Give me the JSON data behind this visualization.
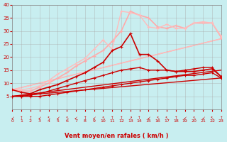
{
  "xlabel": "Vent moyen/en rafales ( km/h )",
  "background_color": "#c8eef0",
  "grid_color": "#aaaaaa",
  "xlim": [
    0,
    23
  ],
  "ylim": [
    0,
    40
  ],
  "yticks": [
    5,
    10,
    15,
    20,
    25,
    30,
    35,
    40
  ],
  "xticks": [
    0,
    1,
    2,
    3,
    4,
    5,
    6,
    7,
    8,
    9,
    10,
    11,
    12,
    13,
    14,
    15,
    16,
    17,
    18,
    19,
    20,
    21,
    22,
    23
  ],
  "series": [
    {
      "note": "straight dark red line bottom - linear from ~5 to ~12",
      "x": [
        0,
        23
      ],
      "y": [
        5.0,
        12.0
      ],
      "color": "#cc0000",
      "linewidth": 1.0,
      "marker": null,
      "linestyle": "-",
      "zorder": 2
    },
    {
      "note": "straight dark red line - linear from ~5 to ~15",
      "x": [
        0,
        23
      ],
      "y": [
        5.0,
        15.0
      ],
      "color": "#cc0000",
      "linewidth": 1.0,
      "marker": null,
      "linestyle": "-",
      "zorder": 2
    },
    {
      "note": "straight pink line - linear from ~7.5 to ~27",
      "x": [
        0,
        23
      ],
      "y": [
        7.5,
        27.0
      ],
      "color": "#ffaaaa",
      "linewidth": 1.0,
      "marker": null,
      "linestyle": "-",
      "zorder": 1
    },
    {
      "note": "straight pink line upper - linear from ~7.5 to ~27",
      "x": [
        0,
        23
      ],
      "y": [
        7.5,
        27.0
      ],
      "color": "#ffbbbb",
      "linewidth": 1.0,
      "marker": null,
      "linestyle": "-",
      "zorder": 1
    },
    {
      "note": "dark red jagged with markers - bottom flat ~5, slight rise to 13",
      "x": [
        0,
        1,
        2,
        3,
        4,
        5,
        6,
        7,
        8,
        9,
        10,
        11,
        12,
        13,
        14,
        15,
        16,
        17,
        18,
        19,
        20,
        21,
        22,
        23
      ],
      "y": [
        5.0,
        5.0,
        5.0,
        5.0,
        5.5,
        6.0,
        6.5,
        7.0,
        7.5,
        8.0,
        8.5,
        9.0,
        9.5,
        10.0,
        10.5,
        11.0,
        11.5,
        12.0,
        12.5,
        13.0,
        13.0,
        13.5,
        14.0,
        12.0
      ],
      "color": "#cc0000",
      "linewidth": 1.0,
      "marker": "+",
      "markersize": 3,
      "linestyle": "-",
      "zorder": 4
    },
    {
      "note": "dark red jagged - rises to ~15 then flat",
      "x": [
        0,
        1,
        2,
        3,
        4,
        5,
        6,
        7,
        8,
        9,
        10,
        11,
        12,
        13,
        14,
        15,
        16,
        17,
        18,
        19,
        20,
        21,
        22,
        23
      ],
      "y": [
        5.0,
        5.0,
        5.5,
        6.0,
        7.0,
        8.0,
        9.0,
        10.0,
        11.0,
        12.0,
        13.0,
        14.0,
        15.0,
        15.5,
        16.0,
        15.0,
        15.0,
        15.0,
        14.5,
        15.0,
        15.5,
        16.0,
        16.0,
        12.5
      ],
      "color": "#cc0000",
      "linewidth": 1.0,
      "marker": "+",
      "markersize": 3,
      "linestyle": "-",
      "zorder": 4
    },
    {
      "note": "dark red jagged - peak at 13~29 then drops to 15",
      "x": [
        0,
        1,
        2,
        3,
        4,
        5,
        6,
        7,
        8,
        9,
        10,
        11,
        12,
        13,
        14,
        15,
        16,
        17,
        18,
        19,
        20,
        21,
        22,
        23
      ],
      "y": [
        7.5,
        6.5,
        6.0,
        7.5,
        8.5,
        9.5,
        11.0,
        12.5,
        14.0,
        16.0,
        18.0,
        22.5,
        24.0,
        29.0,
        21.0,
        21.0,
        18.5,
        15.0,
        14.5,
        14.5,
        14.5,
        15.0,
        15.5,
        12.5
      ],
      "color": "#cc0000",
      "linewidth": 1.2,
      "marker": "+",
      "markersize": 3,
      "linestyle": "-",
      "zorder": 5
    },
    {
      "note": "pink jagged - rises to peak ~37 at x=13",
      "x": [
        0,
        1,
        2,
        3,
        4,
        5,
        6,
        7,
        8,
        9,
        10,
        11,
        12,
        13,
        14,
        15,
        16,
        17,
        18,
        19,
        20,
        21,
        22,
        23
      ],
      "y": [
        7.5,
        7.0,
        7.0,
        8.5,
        10.0,
        12.0,
        14.0,
        16.5,
        18.5,
        20.5,
        22.5,
        26.0,
        30.0,
        37.5,
        36.0,
        35.0,
        31.5,
        31.0,
        32.0,
        31.0,
        33.0,
        33.0,
        33.0,
        27.5
      ],
      "color": "#ffaaaa",
      "linewidth": 1.2,
      "marker": "+",
      "markersize": 3,
      "linestyle": "-",
      "zorder": 3
    },
    {
      "note": "pink jagged upper - peak ~37 at x=12",
      "x": [
        0,
        1,
        2,
        3,
        4,
        5,
        6,
        7,
        8,
        9,
        10,
        11,
        12,
        13,
        14,
        15,
        16,
        17,
        18,
        19,
        20,
        21,
        22,
        23
      ],
      "y": [
        7.5,
        7.5,
        8.0,
        9.0,
        11.0,
        13.5,
        15.5,
        17.5,
        19.5,
        23.0,
        26.5,
        23.0,
        37.5,
        37.0,
        36.0,
        31.5,
        31.0,
        32.5,
        31.0,
        31.0,
        33.0,
        33.5,
        33.0,
        28.0
      ],
      "color": "#ffbbbb",
      "linewidth": 1.0,
      "marker": "+",
      "markersize": 3,
      "linestyle": "-",
      "zorder": 3
    }
  ],
  "arrow_symbols": [
    "↙",
    "↑",
    "↑",
    "↙",
    "↖",
    "↙",
    "↖",
    "↙",
    "↑",
    "↙",
    "↖",
    "↑",
    "↑",
    "↗",
    "↑",
    "↙",
    "↖",
    "↖",
    "↑",
    "↙",
    "↖",
    "↙",
    "↖",
    "↑"
  ]
}
